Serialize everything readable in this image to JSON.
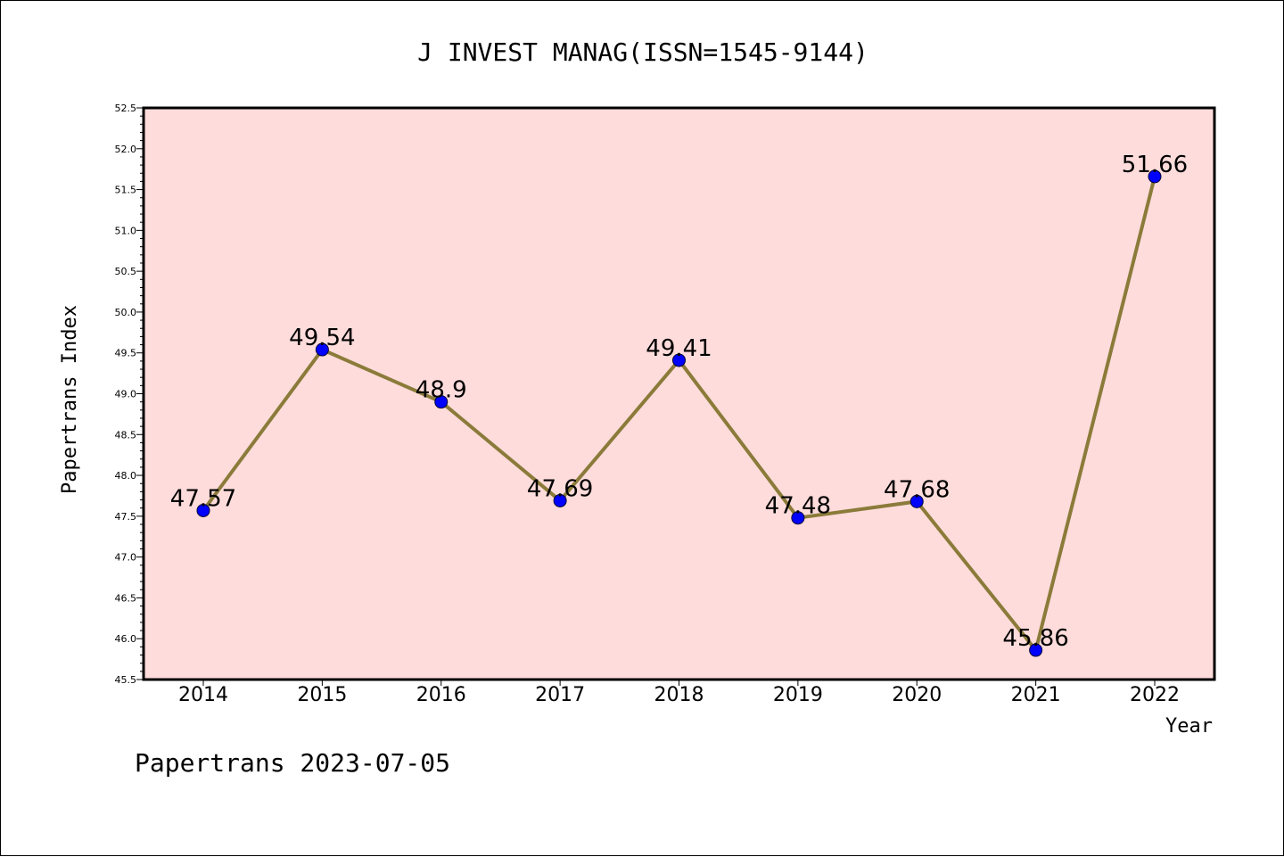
{
  "chart_data": {
    "type": "line",
    "title": "J INVEST MANAG(ISSN=1545-9144)",
    "xlabel": "Year",
    "ylabel": "Papertrans Index",
    "footer": "Papertrans 2023-07-05",
    "categories": [
      "2014",
      "2015",
      "2016",
      "2017",
      "2018",
      "2019",
      "2020",
      "2021",
      "2022"
    ],
    "series": [
      {
        "values": [
          47.57,
          49.54,
          48.9,
          47.69,
          49.41,
          47.48,
          47.68,
          45.86,
          51.66
        ],
        "data_labels": [
          "47.57",
          "49.54",
          "48.9",
          "47.69",
          "49.41",
          "47.48",
          "47.68",
          "45.86",
          "51.66"
        ]
      }
    ],
    "ylim": [
      45.5,
      52.5
    ],
    "yticks": [
      "45.5",
      "46.0",
      "46.5",
      "47.0",
      "47.5",
      "48.0",
      "48.5",
      "49.0",
      "49.5",
      "50.0",
      "50.5",
      "51.0",
      "51.5",
      "52.0",
      "52.5"
    ],
    "grid": false,
    "colors": {
      "plot_background": "#fedcdb",
      "line": "#8b7b3a",
      "marker": "#0000ff",
      "axis": "#000000"
    }
  }
}
